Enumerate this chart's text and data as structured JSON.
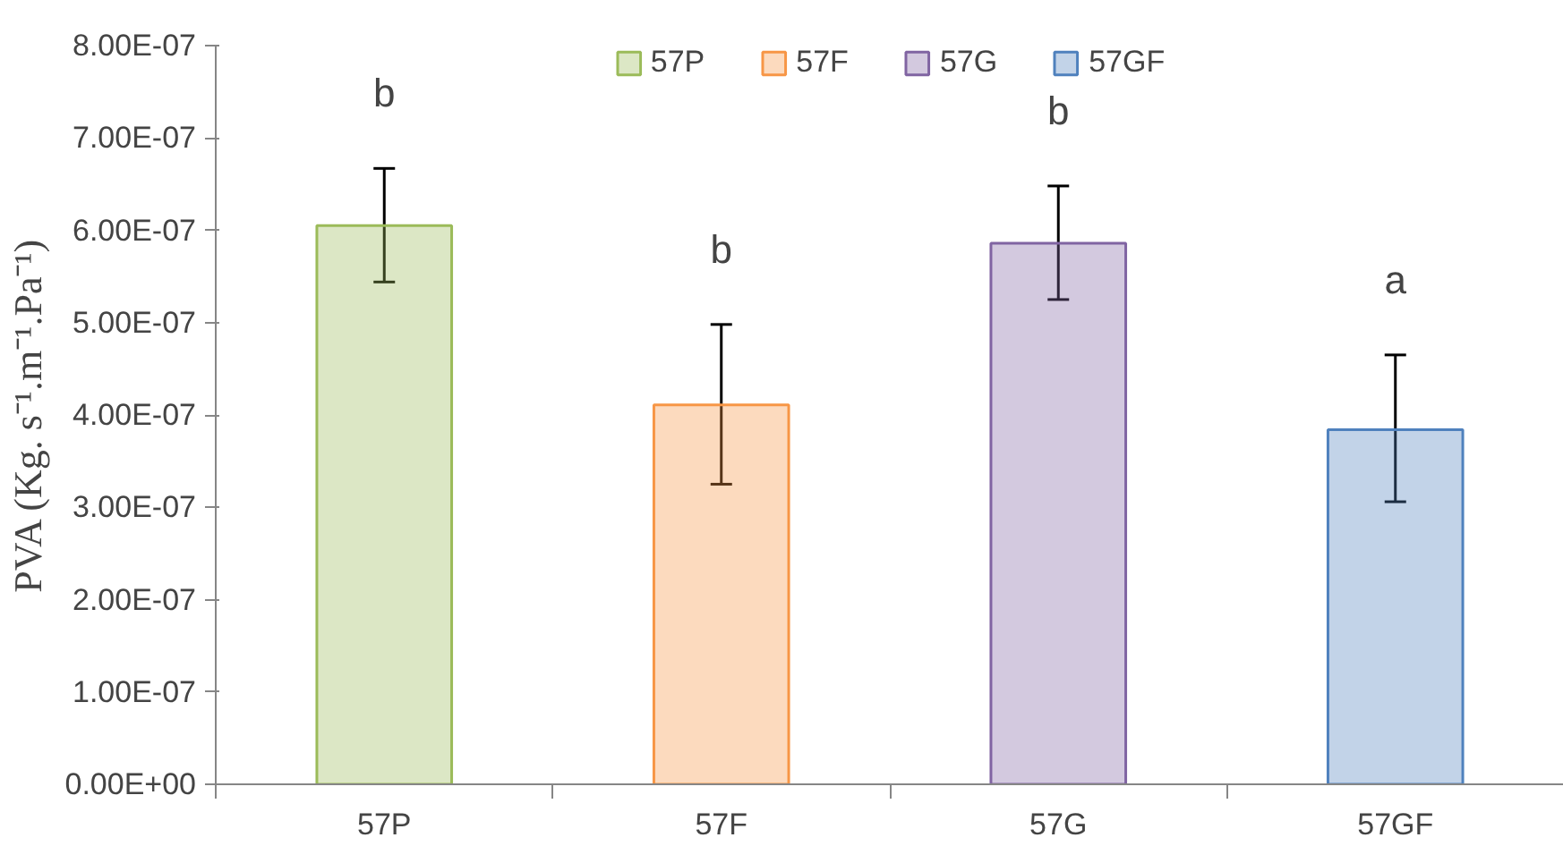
{
  "chart_data": {
    "type": "bar",
    "ylabel": "PVA (Kg. s⁻¹.m⁻¹.Pa⁻¹)",
    "categories": [
      "57P",
      "57F",
      "57G",
      "57GF"
    ],
    "series": [
      {
        "name": "57P",
        "color": "#9bbb59",
        "values": [
          6.05e-07,
          null,
          null,
          null
        ],
        "errors": [
          [
            5.44e-07,
            6.67e-07
          ],
          null,
          null,
          null
        ]
      },
      {
        "name": "57F",
        "color": "#f79646",
        "values": [
          null,
          4.11e-07,
          null,
          null
        ],
        "errors": [
          null,
          [
            3.25e-07,
            4.98e-07
          ],
          null,
          null
        ]
      },
      {
        "name": "57G",
        "color": "#8064a2",
        "values": [
          null,
          null,
          5.86e-07,
          null
        ],
        "errors": [
          null,
          null,
          [
            5.25e-07,
            6.48e-07
          ],
          null
        ]
      },
      {
        "name": "57GF",
        "color": "#4f81bd",
        "values": [
          null,
          null,
          null,
          3.84e-07
        ],
        "errors": [
          null,
          null,
          null,
          [
            3.06e-07,
            4.65e-07
          ]
        ]
      }
    ],
    "ylim": [
      0,
      8e-07
    ],
    "yticks": [
      {
        "value": 0,
        "label": "0.00E+00"
      },
      {
        "value": 1e-07,
        "label": "1.00E-07"
      },
      {
        "value": 2e-07,
        "label": "2.00E-07"
      },
      {
        "value": 3e-07,
        "label": "3.00E-07"
      },
      {
        "value": 4e-07,
        "label": "4.00E-07"
      },
      {
        "value": 5e-07,
        "label": "5.00E-07"
      },
      {
        "value": 6e-07,
        "label": "6.00E-07"
      },
      {
        "value": 7e-07,
        "label": "7.00E-07"
      },
      {
        "value": 8e-07,
        "label": "8.00E-07"
      }
    ],
    "annotations": [
      "b",
      "b",
      "b",
      "a"
    ],
    "legend": "top",
    "grid": false
  }
}
